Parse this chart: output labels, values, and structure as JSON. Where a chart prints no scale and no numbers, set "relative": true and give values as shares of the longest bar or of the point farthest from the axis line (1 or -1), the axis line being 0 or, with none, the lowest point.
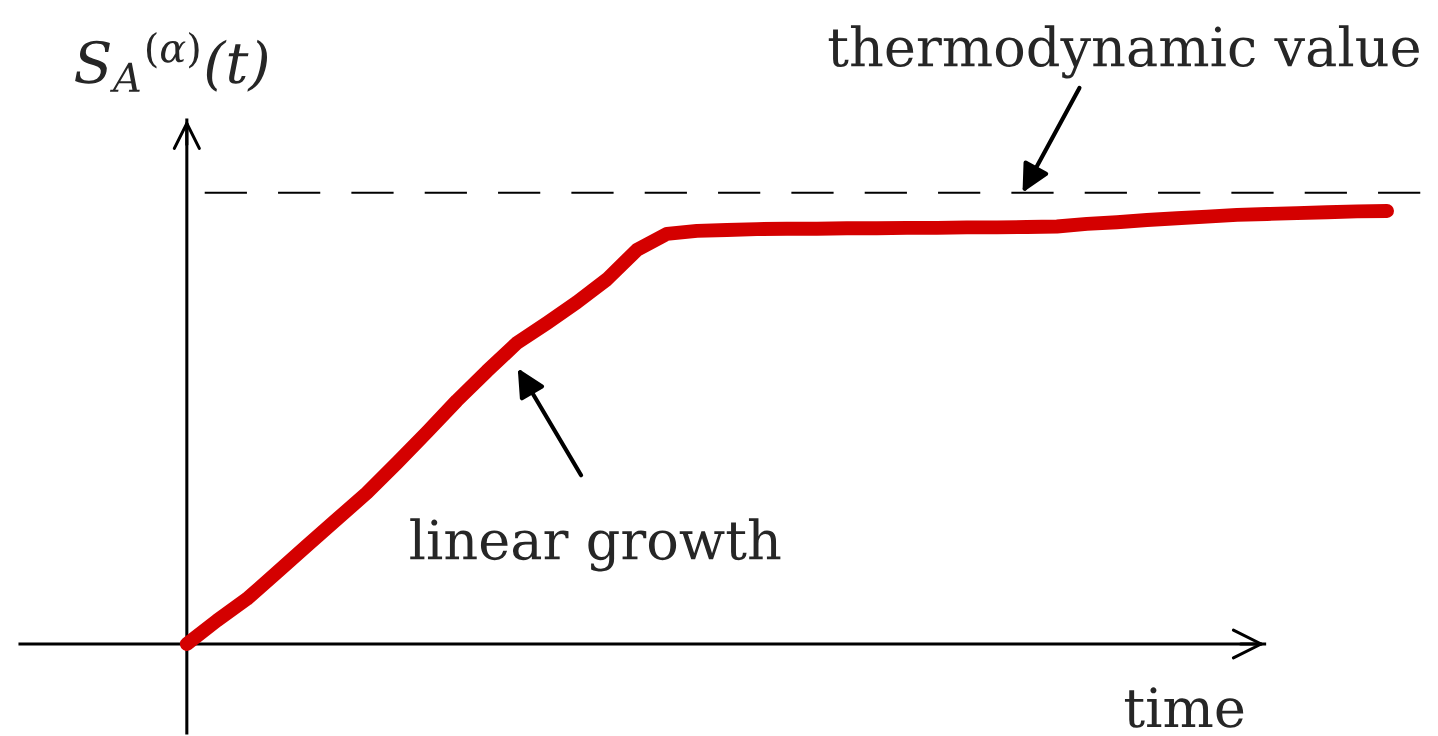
{
  "chart_data": {
    "type": "line",
    "relative": true,
    "xlabel": "time",
    "ylabel": "S$_{A}$$^{(α)}$(t)",
    "categories": [
      null,
      null,
      null,
      null,
      null,
      null,
      null,
      null,
      null,
      null,
      null,
      null,
      null,
      null,
      null,
      null,
      null,
      null,
      null,
      null,
      null,
      null,
      null,
      null,
      null,
      null,
      null,
      null,
      null,
      null,
      null,
      null,
      null,
      null,
      null,
      null,
      null,
      null,
      null,
      null,
      null
    ],
    "series": [
      {
        "color": "#d40000",
        "values": [
          0.0,
          0.054,
          0.104,
          0.165,
          0.227,
          0.288,
          0.349,
          0.418,
          0.489,
          0.562,
          0.63,
          0.695,
          0.741,
          0.789,
          0.842,
          0.91,
          0.947,
          0.954,
          0.956,
          0.958,
          0.959,
          0.959,
          0.96,
          0.96,
          0.961,
          0.961,
          0.962,
          0.962,
          0.963,
          0.964,
          0.97,
          0.974,
          0.979,
          0.983,
          0.987,
          0.991,
          0.993,
          0.995,
          0.997,
          0.999,
          1.0
        ]
      }
    ],
    "ref_lines": [
      {
        "axis": "y",
        "value": 1.042,
        "label": "thermodynamic value",
        "color": "#000000",
        "line_style": "dashed"
      }
    ],
    "annotations": [
      "linear growth"
    ]
  }
}
